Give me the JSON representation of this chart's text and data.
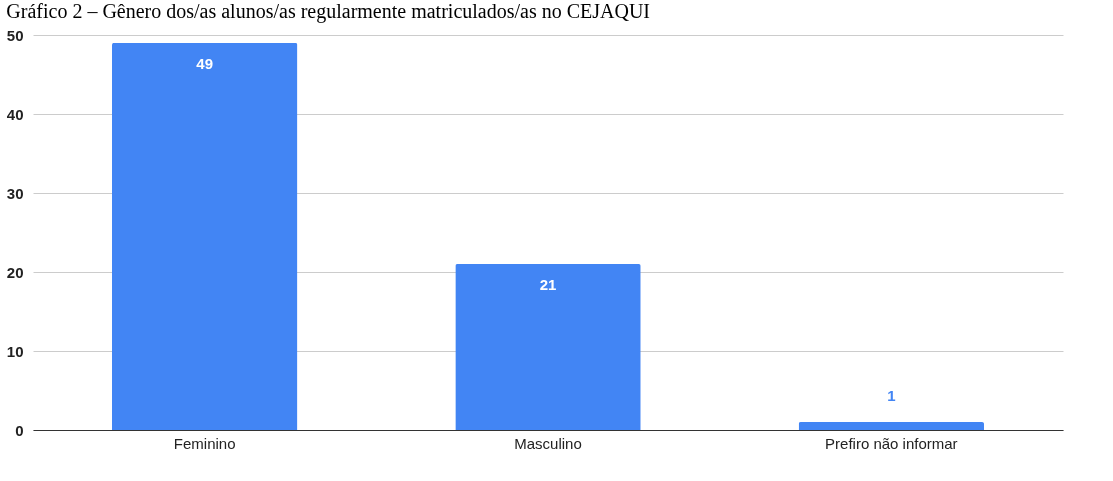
{
  "chart_data": {
    "type": "bar",
    "title": "Gráfico 2 – Gênero dos/as alunos/as regularmente matriculados/as no CEJAQUI",
    "categories": [
      "Feminino",
      "Masculino",
      "Prefiro não informar"
    ],
    "values": [
      49,
      21,
      1
    ],
    "color": "#4285f4",
    "ylim": [
      0,
      50
    ],
    "yticks": [
      0,
      10,
      20,
      30,
      40,
      50
    ],
    "grid": "y",
    "data_labels": true
  }
}
